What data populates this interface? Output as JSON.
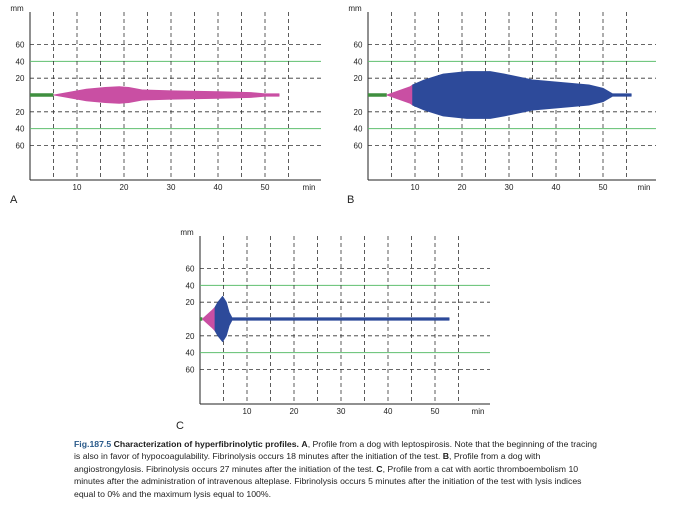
{
  "colors": {
    "magenta": "#c94fa3",
    "blue": "#2d4a9a",
    "green_line": "#5fbf6f",
    "baseline_green": "#3f8f3f",
    "grid_dashed": "#333333",
    "axis": "#222222"
  },
  "panels": [
    {
      "label": "A",
      "y_unit": "mm",
      "x_unit": "min",
      "x_ticks": [
        "10",
        "20",
        "30",
        "40",
        "50"
      ],
      "y_ticks_upper": [
        "60",
        "40",
        "20"
      ],
      "y_ticks_lower": [
        "20",
        "40",
        "60"
      ]
    },
    {
      "label": "B",
      "y_unit": "mm",
      "x_unit": "min",
      "x_ticks": [
        "10",
        "20",
        "30",
        "40",
        "50"
      ],
      "y_ticks_upper": [
        "60",
        "40",
        "20"
      ],
      "y_ticks_lower": [
        "20",
        "40",
        "60"
      ]
    },
    {
      "label": "C",
      "y_unit": "mm",
      "x_unit": "min",
      "x_ticks": [
        "10",
        "20",
        "30",
        "40",
        "50"
      ],
      "y_ticks_upper": [
        "60",
        "40",
        "20"
      ],
      "y_ticks_lower": [
        "20",
        "40",
        "60"
      ]
    }
  ],
  "chart_data": [
    {
      "type": "area",
      "panel": "A",
      "xlabel": "min",
      "ylabel": "mm",
      "xlim": [
        0,
        53
      ],
      "ylim": [
        -70,
        70
      ],
      "grid": true,
      "baseline_until_min": 5,
      "series": [
        {
          "color": "#c94fa3",
          "points": [
            [
              5,
              0
            ],
            [
              8,
              3
            ],
            [
              12,
              7
            ],
            [
              16,
              9
            ],
            [
              19,
              10
            ],
            [
              21,
              9
            ],
            [
              24,
              6
            ],
            [
              30,
              5
            ],
            [
              40,
              4
            ],
            [
              47,
              3
            ],
            [
              50,
              1.5
            ],
            [
              53,
              1.5
            ]
          ]
        }
      ]
    },
    {
      "type": "area",
      "panel": "B",
      "xlabel": "min",
      "ylabel": "mm",
      "xlim": [
        0,
        53
      ],
      "ylim": [
        -70,
        70
      ],
      "grid": true,
      "baseline_until_min": 4,
      "series": [
        {
          "color": "#c94fa3",
          "points": [
            [
              4,
              0
            ],
            [
              6,
              4
            ],
            [
              9,
              10
            ],
            [
              9.5,
              12
            ]
          ]
        },
        {
          "color": "#2d4a9a",
          "points": [
            [
              9.5,
              12
            ],
            [
              12,
              18
            ],
            [
              16,
              25
            ],
            [
              21,
              28
            ],
            [
              26,
              28
            ],
            [
              29,
              25
            ],
            [
              35,
              18
            ],
            [
              41,
              15
            ],
            [
              47,
              12
            ],
            [
              50,
              8
            ],
            [
              52,
              1.5
            ],
            [
              56,
              1.5
            ]
          ]
        }
      ]
    },
    {
      "type": "area",
      "panel": "C",
      "xlabel": "min",
      "ylabel": "mm",
      "xlim": [
        0,
        53
      ],
      "ylim": [
        -70,
        70
      ],
      "grid": true,
      "baseline_until_min": 0.5,
      "series": [
        {
          "color": "#c94fa3",
          "points": [
            [
              0.5,
              0
            ],
            [
              1.5,
              5
            ],
            [
              2.5,
              10
            ],
            [
              3.2,
              14
            ]
          ]
        },
        {
          "color": "#2d4a9a",
          "points": [
            [
              3.2,
              14
            ],
            [
              3.8,
              20
            ],
            [
              4.8,
              27
            ],
            [
              5.6,
              20
            ],
            [
              6.2,
              8
            ],
            [
              6.8,
              1.5
            ],
            [
              10,
              1.5
            ],
            [
              30,
              1.5
            ],
            [
              53,
              1.5
            ]
          ]
        }
      ]
    }
  ],
  "caption": {
    "fig": "Fig.187.5",
    "title": "Characterization of hyperfibrinolytic profiles.",
    "a_label": "A",
    "a_text": ", Profile from a dog with leptospirosis. Note that the beginning of the tracing is also in favor of hypocoagulability. Fibrinolysis occurs 18 minutes after the initiation of the test.",
    "b_label": "B",
    "b_text": ", Profile from a dog with angiostrongylosis. Fibrinolysis occurs 27 minutes after the initiation of the test.",
    "c_label": "C",
    "c_text": ", Profile from a cat with aortic thromboembolism 10 minutes after the administration of intravenous alteplase. Fibrinolysis occurs 5 minutes after the initiation of the test with lysis indices equal to 0% and the maximum lysis equal to 100%."
  }
}
